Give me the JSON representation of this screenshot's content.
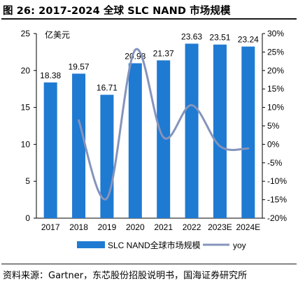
{
  "title": "图 26:  2017-2024 全球 SLC NAND 市场规模",
  "source": "资料来源：Gartner，东芯股份招股说明书，国海证券研究所",
  "chart_data": {
    "type": "bar",
    "categories": [
      "2017",
      "2018",
      "2019",
      "2020",
      "2021",
      "2022",
      "2023E",
      "2024E"
    ],
    "unit_label": "亿美元",
    "series": [
      {
        "name": "SLC NAND全球市场规模",
        "type": "bar",
        "axis": "left",
        "values": [
          18.38,
          19.57,
          16.71,
          20.98,
          21.37,
          23.63,
          23.51,
          23.24
        ],
        "data_labels": [
          "18.38",
          "19.57",
          "16.71",
          "20.98",
          "21.37",
          "23.63",
          "23.51",
          "23.24"
        ]
      },
      {
        "name": "yoy",
        "type": "line",
        "axis": "right",
        "values": [
          null,
          6.5,
          -14.6,
          25.6,
          1.9,
          10.6,
          -0.5,
          -1.1
        ]
      }
    ],
    "ylim_left": [
      0,
      25
    ],
    "yticks_left": [
      "0",
      "5",
      "10",
      "15",
      "20",
      "25"
    ],
    "ylim_right": [
      -20,
      30
    ],
    "yticks_right": [
      "-20%",
      "-15%",
      "-10%",
      "-5%",
      "0%",
      "5%",
      "10%",
      "15%",
      "20%",
      "25%",
      "30%"
    ],
    "grid": false,
    "legend": "bottom",
    "colors": {
      "bar": "#1f7ad2",
      "line": "#8594bc"
    }
  }
}
